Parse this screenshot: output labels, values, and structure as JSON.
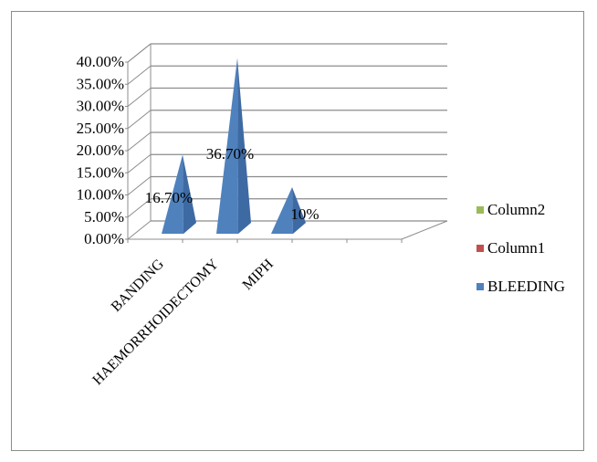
{
  "chart_data": {
    "type": "bar",
    "variant": "3d-pyramid",
    "title": "",
    "xlabel": "",
    "ylabel": "",
    "categories": [
      "BANDING",
      "HAEMORRHOIDECTOMY",
      "MIPH",
      "",
      ""
    ],
    "series": [
      {
        "name": "BLEEDING",
        "color": "#4f81bd",
        "values": [
          16.7,
          36.7,
          10.0,
          null,
          null
        ],
        "data_labels": [
          "16.70%",
          "36.70%",
          "10%",
          "",
          ""
        ]
      },
      {
        "name": "Column1",
        "color": "#c0504d",
        "values": [
          null,
          null,
          null,
          null,
          null
        ]
      },
      {
        "name": "Column2",
        "color": "#9bbb59",
        "values": [
          null,
          null,
          null,
          null,
          null
        ]
      }
    ],
    "ylim": [
      0,
      40
    ],
    "yticks": [
      0,
      5,
      10,
      15,
      20,
      25,
      30,
      35,
      40
    ],
    "ytick_labels": [
      "0.00%",
      "5.00%",
      "10.00%",
      "15.00%",
      "20.00%",
      "25.00%",
      "30.00%",
      "35.00%",
      "40.00%"
    ],
    "grid": true,
    "legend_position": "right",
    "legend_order": [
      "Column2",
      "Column1",
      "BLEEDING"
    ]
  }
}
